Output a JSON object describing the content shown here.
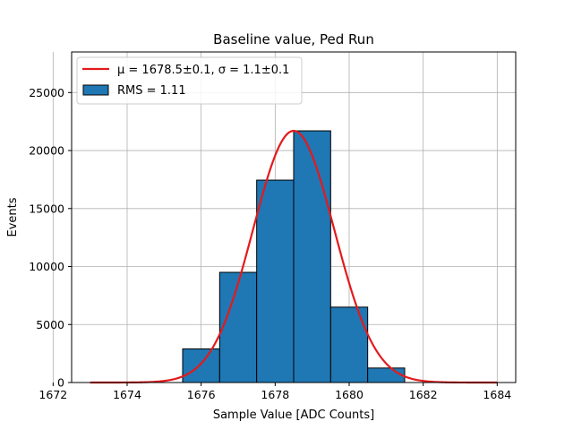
{
  "chart_data": {
    "type": "bar",
    "title": "Baseline value, Ped Run",
    "xlabel": "Sample Value [ADC Counts]",
    "ylabel": "Events",
    "xlim": [
      1672.5,
      1684.5
    ],
    "ylim": [
      0,
      28500
    ],
    "grid": true,
    "legend_placement": "upper-left",
    "xticks": [
      1672,
      1674,
      1676,
      1678,
      1680,
      1682,
      1684
    ],
    "yticks": [
      0,
      5000,
      10000,
      15000,
      20000,
      25000
    ],
    "histogram": {
      "name": "RMS = 1.11",
      "color": "#1f77b4",
      "bin_edges": [
        1675.5,
        1676.5,
        1677.5,
        1678.5,
        1679.5,
        1680.5,
        1681.5
      ],
      "values": [
        2900,
        9500,
        17450,
        21700,
        6500,
        1250
      ]
    },
    "fit": {
      "name": "μ = 1678.5±0.1, σ = 1.1±0.1",
      "color": "#e31a1c",
      "function": "gaussian",
      "mu": 1678.5,
      "sigma": 1.1,
      "amplitude": 21700,
      "x_range": [
        1673,
        1684
      ]
    }
  }
}
